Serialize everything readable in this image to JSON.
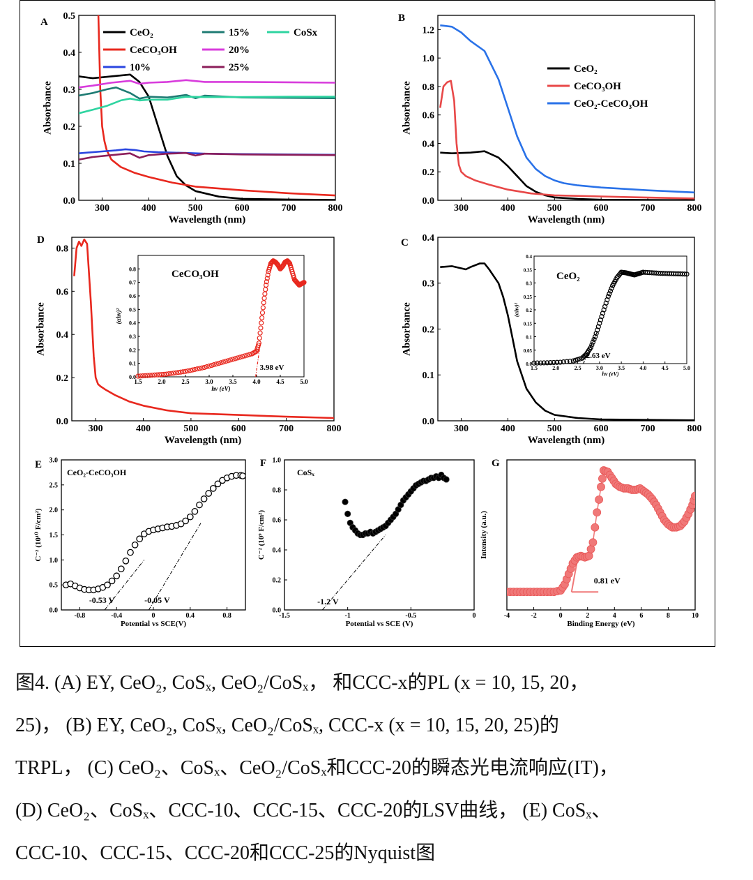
{
  "chart_data": [
    {
      "id": "A",
      "panel_label": "A",
      "type": "line",
      "xlabel": "Wavelength (nm)",
      "ylabel": "Absorbance",
      "xlim": [
        250,
        800
      ],
      "ylim": [
        0,
        0.5
      ],
      "xticks": [
        300,
        400,
        500,
        600,
        700,
        800
      ],
      "yticks": [
        0.0,
        0.1,
        0.2,
        0.3,
        0.4,
        0.5
      ],
      "yfmt": 1,
      "legend": "top",
      "series": [
        {
          "name": "CeO₂",
          "color": "#000000",
          "x": [
            250,
            280,
            320,
            360,
            380,
            400,
            420,
            440,
            460,
            480,
            500,
            550,
            600,
            700,
            800
          ],
          "y": [
            0.335,
            0.33,
            0.335,
            0.34,
            0.32,
            0.28,
            0.2,
            0.12,
            0.065,
            0.04,
            0.025,
            0.01,
            0.004,
            0.002,
            0.001
          ]
        },
        {
          "name": "CeCO₃OH",
          "color": "#e8281e",
          "x": [
            292,
            296,
            300,
            305,
            310,
            320,
            340,
            370,
            400,
            450,
            500,
            600,
            700,
            800
          ],
          "y": [
            0.5,
            0.3,
            0.2,
            0.16,
            0.135,
            0.11,
            0.09,
            0.074,
            0.063,
            0.048,
            0.037,
            0.027,
            0.019,
            0.013
          ]
        },
        {
          "name": "10%",
          "color": "#2a46e0",
          "x": [
            250,
            300,
            330,
            350,
            370,
            390,
            420,
            480,
            520,
            600,
            700,
            800
          ],
          "y": [
            0.127,
            0.132,
            0.135,
            0.138,
            0.136,
            0.132,
            0.13,
            0.128,
            0.126,
            0.125,
            0.124,
            0.123
          ]
        },
        {
          "name": "15%",
          "color": "#1e7b73",
          "x": [
            250,
            280,
            310,
            330,
            360,
            380,
            400,
            440,
            480,
            500,
            520,
            600,
            700,
            800
          ],
          "y": [
            0.283,
            0.29,
            0.3,
            0.305,
            0.29,
            0.275,
            0.28,
            0.278,
            0.285,
            0.276,
            0.283,
            0.278,
            0.277,
            0.276
          ]
        },
        {
          "name": "20%",
          "color": "#d83cdc",
          "x": [
            250,
            280,
            320,
            360,
            380,
            400,
            440,
            480,
            520,
            600,
            700,
            800
          ],
          "y": [
            0.305,
            0.31,
            0.318,
            0.323,
            0.315,
            0.318,
            0.32,
            0.325,
            0.32,
            0.32,
            0.319,
            0.318
          ]
        },
        {
          "name": "25%",
          "color": "#8c1e5a",
          "x": [
            250,
            280,
            320,
            360,
            380,
            400,
            440,
            480,
            500,
            520,
            600,
            700,
            800
          ],
          "y": [
            0.11,
            0.117,
            0.122,
            0.127,
            0.115,
            0.122,
            0.126,
            0.128,
            0.121,
            0.126,
            0.124,
            0.123,
            0.122
          ]
        },
        {
          "name": "CoSx",
          "color": "#2ed4a0",
          "x": [
            250,
            280,
            310,
            340,
            360,
            380,
            400,
            440,
            480,
            520,
            600,
            700,
            800
          ],
          "y": [
            0.235,
            0.245,
            0.255,
            0.27,
            0.275,
            0.27,
            0.272,
            0.272,
            0.28,
            0.279,
            0.279,
            0.28,
            0.28
          ]
        }
      ]
    },
    {
      "id": "B",
      "panel_label": "B",
      "type": "line",
      "xlabel": "Wavelength (nm)",
      "ylabel": "Absorbance",
      "xlim": [
        250,
        800
      ],
      "ylim": [
        0,
        1.3
      ],
      "xticks": [
        300,
        400,
        500,
        600,
        700,
        800
      ],
      "yticks": [
        0.0,
        0.2,
        0.4,
        0.6,
        0.8,
        1.0,
        1.2
      ],
      "yfmt": 1,
      "legend": "right",
      "series": [
        {
          "name": "CeO₂",
          "color": "#000000",
          "x": [
            255,
            280,
            320,
            350,
            380,
            400,
            420,
            440,
            460,
            480,
            500,
            550,
            600,
            700,
            800
          ],
          "y": [
            0.335,
            0.33,
            0.335,
            0.345,
            0.3,
            0.24,
            0.17,
            0.1,
            0.06,
            0.035,
            0.02,
            0.01,
            0.004,
            0.002,
            0.001
          ]
        },
        {
          "name": "CeCO₃OH",
          "color": "#e84848",
          "x": [
            255,
            262,
            270,
            278,
            285,
            290,
            295,
            300,
            310,
            330,
            360,
            400,
            450,
            500,
            600,
            700,
            800
          ],
          "y": [
            0.65,
            0.8,
            0.83,
            0.84,
            0.7,
            0.4,
            0.25,
            0.2,
            0.17,
            0.14,
            0.11,
            0.075,
            0.048,
            0.035,
            0.027,
            0.019,
            0.013
          ]
        },
        {
          "name": "CeO₂-CeCO₃OH",
          "color": "#2a72e8",
          "x": [
            255,
            280,
            300,
            320,
            350,
            380,
            400,
            420,
            440,
            460,
            480,
            500,
            520,
            550,
            600,
            650,
            700,
            800
          ],
          "y": [
            1.23,
            1.22,
            1.18,
            1.12,
            1.05,
            0.85,
            0.65,
            0.45,
            0.3,
            0.22,
            0.17,
            0.14,
            0.12,
            0.105,
            0.09,
            0.08,
            0.07,
            0.055
          ]
        }
      ]
    },
    {
      "id": "D",
      "panel_label": "D",
      "type": "line",
      "xlabel": "Wavelength (nm)",
      "ylabel": "Absorbance",
      "xlim": [
        250,
        800
      ],
      "ylim": [
        0,
        0.85
      ],
      "xticks": [
        300,
        400,
        500,
        600,
        700,
        800
      ],
      "yticks": [
        0.0,
        0.2,
        0.4,
        0.6,
        0.8
      ],
      "yfmt": 1,
      "series": [
        {
          "name": "",
          "color": "#e8281e",
          "x": [
            255,
            260,
            265,
            270,
            276,
            282,
            290,
            296,
            300,
            305,
            310,
            320,
            340,
            370,
            400,
            450,
            500,
            600,
            700,
            800
          ],
          "y": [
            0.67,
            0.8,
            0.83,
            0.81,
            0.84,
            0.82,
            0.55,
            0.3,
            0.2,
            0.17,
            0.16,
            0.145,
            0.12,
            0.09,
            0.07,
            0.048,
            0.035,
            0.027,
            0.019,
            0.013
          ]
        }
      ],
      "inset": {
        "title": "CeCO₃OH",
        "xlabel": "hν (eV)",
        "ylabel": "(αhν)²",
        "xlim": [
          1.5,
          5.0
        ],
        "ylim": [
          0,
          0.9
        ],
        "xticks": [
          1.5,
          2.0,
          2.5,
          3.0,
          3.5,
          4.0,
          4.5,
          5.0
        ],
        "yticks": [
          0.0,
          0.1,
          0.2,
          0.3,
          0.4,
          0.5,
          0.6,
          0.7,
          0.8
        ],
        "marker_color": "#e8281e",
        "x": [
          1.5,
          1.7,
          1.9,
          2.1,
          2.3,
          2.5,
          2.7,
          2.9,
          3.1,
          3.3,
          3.5,
          3.7,
          3.9,
          4.0,
          4.05,
          4.1,
          4.15,
          4.2,
          4.25,
          4.3,
          4.35,
          4.4,
          4.45,
          4.5,
          4.55,
          4.6,
          4.65,
          4.7,
          4.75,
          4.8,
          4.85,
          4.9,
          4.95,
          5.0
        ],
        "y": [
          0.005,
          0.01,
          0.015,
          0.02,
          0.03,
          0.04,
          0.055,
          0.07,
          0.09,
          0.11,
          0.13,
          0.15,
          0.17,
          0.19,
          0.25,
          0.4,
          0.55,
          0.68,
          0.78,
          0.84,
          0.86,
          0.85,
          0.83,
          0.8,
          0.82,
          0.85,
          0.86,
          0.84,
          0.78,
          0.72,
          0.7,
          0.68,
          0.69,
          0.7
        ],
        "annotation": "3.98 eV",
        "annotation_x": 3.98
      }
    },
    {
      "id": "C",
      "panel_label": "C",
      "type": "line",
      "xlabel": "Wavelength (nm)",
      "ylabel": "Absorbance",
      "xlim": [
        250,
        800
      ],
      "ylim": [
        0,
        0.4
      ],
      "xticks": [
        300,
        400,
        500,
        600,
        700,
        800
      ],
      "yticks": [
        0.0,
        0.1,
        0.2,
        0.3,
        0.4
      ],
      "yfmt": 1,
      "series": [
        {
          "name": "",
          "color": "#000000",
          "x": [
            255,
            280,
            310,
            320,
            340,
            350,
            360,
            380,
            390,
            400,
            410,
            420,
            440,
            460,
            480,
            500,
            550,
            600,
            700,
            800
          ],
          "y": [
            0.335,
            0.337,
            0.33,
            0.335,
            0.343,
            0.343,
            0.33,
            0.3,
            0.27,
            0.23,
            0.18,
            0.13,
            0.07,
            0.04,
            0.022,
            0.013,
            0.006,
            0.003,
            0.002,
            0.001
          ]
        }
      ],
      "inset": {
        "title": "CeO₂",
        "xlabel": "hν (eV)",
        "ylabel": "(αhν)²",
        "xlim": [
          1.5,
          5.0
        ],
        "ylim": [
          0,
          0.4
        ],
        "xticks": [
          1.5,
          2.0,
          2.5,
          3.0,
          3.5,
          4.0,
          4.5,
          5.0
        ],
        "yticks": [
          0.0,
          0.05,
          0.1,
          0.15,
          0.2,
          0.25,
          0.3,
          0.35,
          0.4
        ],
        "marker_color": "#000000",
        "x": [
          1.5,
          1.8,
          2.1,
          2.4,
          2.6,
          2.7,
          2.8,
          2.9,
          3.0,
          3.1,
          3.2,
          3.3,
          3.4,
          3.5,
          3.6,
          3.7,
          3.8,
          3.9,
          4.0,
          4.2,
          4.4,
          4.6,
          4.8,
          5.0
        ],
        "y": [
          0.002,
          0.003,
          0.005,
          0.01,
          0.02,
          0.035,
          0.06,
          0.1,
          0.15,
          0.2,
          0.25,
          0.29,
          0.32,
          0.34,
          0.338,
          0.334,
          0.33,
          0.335,
          0.34,
          0.338,
          0.336,
          0.335,
          0.334,
          0.333
        ],
        "annotation": "2.63 eV",
        "annotation_x": 2.63
      }
    },
    {
      "id": "E",
      "panel_label": "E",
      "type": "scatter",
      "title": "CeO₂-CeCO₃OH",
      "xlabel": "Potential vs SCE(V)",
      "ylabel": "C⁻² (10¹⁰ F/cm²)",
      "xlim": [
        -1.0,
        1.0
      ],
      "ylim": [
        0,
        3.0
      ],
      "xticks": [
        -0.8,
        -0.4,
        0.0,
        0.4,
        0.8
      ],
      "yticks": [
        0.0,
        0.5,
        1.0,
        1.5,
        2.0,
        2.5,
        3.0
      ],
      "yfmt": 1,
      "marker_color": "#000000",
      "x": [
        -0.95,
        -0.9,
        -0.85,
        -0.8,
        -0.75,
        -0.7,
        -0.65,
        -0.6,
        -0.55,
        -0.5,
        -0.45,
        -0.4,
        -0.35,
        -0.3,
        -0.25,
        -0.2,
        -0.15,
        -0.1,
        -0.05,
        0.0,
        0.05,
        0.1,
        0.15,
        0.2,
        0.25,
        0.3,
        0.35,
        0.4,
        0.45,
        0.5,
        0.55,
        0.6,
        0.65,
        0.7,
        0.75,
        0.8,
        0.85,
        0.9,
        0.95,
        0.97
      ],
      "y": [
        0.5,
        0.52,
        0.48,
        0.44,
        0.41,
        0.4,
        0.4,
        0.42,
        0.45,
        0.5,
        0.58,
        0.68,
        0.82,
        0.98,
        1.15,
        1.3,
        1.42,
        1.52,
        1.57,
        1.6,
        1.62,
        1.64,
        1.66,
        1.67,
        1.69,
        1.72,
        1.78,
        1.86,
        1.97,
        2.1,
        2.22,
        2.33,
        2.43,
        2.52,
        2.59,
        2.64,
        2.67,
        2.69,
        2.69,
        2.68
      ],
      "fit_lines": [
        [
          [
            -0.53,
            0.0
          ],
          [
            -0.1,
            1.0
          ]
        ],
        [
          [
            -0.05,
            0.0
          ],
          [
            0.52,
            1.75
          ]
        ]
      ],
      "annotations": [
        {
          "text": "-0.53 V",
          "x": -0.53,
          "color": "#e02020"
        },
        {
          "text": "-0.05 V",
          "x": -0.05,
          "color": "#2035c8"
        }
      ]
    },
    {
      "id": "F",
      "panel_label": "F",
      "type": "scatter",
      "title": "CoSₓ",
      "xlabel": "Potential vs SCE (V)",
      "ylabel": "C⁻² (10⁹ F/cm²)",
      "xlim": [
        -1.5,
        0.0
      ],
      "ylim": [
        0,
        1.0
      ],
      "xticks": [
        -1.5,
        -1.0,
        -0.5,
        0.0
      ],
      "yticks": [
        0.0,
        0.2,
        0.4,
        0.6,
        0.8,
        1.0
      ],
      "yfmt": 1,
      "marker_color": "#000000",
      "x": [
        -1.02,
        -1.0,
        -0.98,
        -0.96,
        -0.94,
        -0.92,
        -0.9,
        -0.88,
        -0.86,
        -0.84,
        -0.82,
        -0.8,
        -0.78,
        -0.76,
        -0.74,
        -0.72,
        -0.7,
        -0.68,
        -0.66,
        -0.64,
        -0.62,
        -0.6,
        -0.58,
        -0.56,
        -0.54,
        -0.52,
        -0.5,
        -0.48,
        -0.46,
        -0.44,
        -0.42,
        -0.4,
        -0.38,
        -0.36,
        -0.34,
        -0.32,
        -0.3,
        -0.28,
        -0.26,
        -0.24,
        -0.22
      ],
      "y": [
        0.72,
        0.64,
        0.58,
        0.55,
        0.53,
        0.51,
        0.5,
        0.5,
        0.51,
        0.51,
        0.52,
        0.51,
        0.52,
        0.53,
        0.54,
        0.55,
        0.56,
        0.58,
        0.6,
        0.62,
        0.64,
        0.67,
        0.7,
        0.73,
        0.75,
        0.77,
        0.79,
        0.81,
        0.83,
        0.84,
        0.85,
        0.86,
        0.86,
        0.87,
        0.88,
        0.88,
        0.89,
        0.88,
        0.9,
        0.88,
        0.87
      ],
      "fit_lines": [
        [
          [
            -1.2,
            0.0
          ],
          [
            -0.7,
            0.5
          ]
        ]
      ],
      "annotations": [
        {
          "text": "-1.2 V",
          "x": -1.2,
          "color": "#e02020"
        }
      ]
    },
    {
      "id": "G",
      "panel_label": "G",
      "type": "scatter",
      "xlabel": "Binding Energy (eV)",
      "ylabel": "Intensity (a.u.)",
      "xlim": [
        -4,
        10
      ],
      "ylim": [
        0,
        1.0
      ],
      "xticks": [
        -4,
        -2,
        0,
        2,
        4,
        6,
        8,
        10
      ],
      "yticks": [],
      "marker_color": "#f07878",
      "x": [
        -4,
        -3.5,
        -3,
        -2.5,
        -2,
        -1.5,
        -1,
        -0.5,
        0,
        0.3,
        0.6,
        0.9,
        1.2,
        1.5,
        1.8,
        2.1,
        2.4,
        2.7,
        3.0,
        3.2,
        3.5,
        3.8,
        4.1,
        4.4,
        4.7,
        5.0,
        5.3,
        5.6,
        5.9,
        6.2,
        6.5,
        6.8,
        7.1,
        7.4,
        7.7,
        8.0,
        8.3,
        8.6,
        8.9,
        9.2,
        9.5,
        9.8,
        10
      ],
      "y": [
        0.12,
        0.12,
        0.12,
        0.12,
        0.12,
        0.12,
        0.12,
        0.12,
        0.13,
        0.17,
        0.24,
        0.31,
        0.35,
        0.36,
        0.35,
        0.36,
        0.45,
        0.65,
        0.82,
        0.93,
        0.92,
        0.88,
        0.84,
        0.82,
        0.81,
        0.81,
        0.8,
        0.8,
        0.81,
        0.79,
        0.77,
        0.74,
        0.7,
        0.65,
        0.6,
        0.57,
        0.55,
        0.55,
        0.56,
        0.59,
        0.64,
        0.7,
        0.76
      ],
      "fit_lines": [
        [
          [
            0.81,
            0.12
          ],
          [
            1.3,
            0.36
          ]
        ],
        [
          [
            0.81,
            0.12
          ],
          [
            2.8,
            0.12
          ]
        ]
      ],
      "annotations": [
        {
          "text": "0.81 eV",
          "x": 0.81,
          "color": "#000000"
        }
      ]
    }
  ],
  "caption": {
    "lines": [
      "图4. (A) EY, CeO₂, CoSₓ, CeO₂/CoSₓ， 和CCC-x的PL (x = 10, 15, 20，",
      "25)，  (B) EY, CeO₂, CoSₓ, CeO₂/CoSₓ, CCC-x (x = 10, 15, 20, 25)的",
      "TRPL，  (C) CeO₂、CoSₓ、CeO₂/CoSₓ和CCC-20的瞬态光电流响应(IT)，",
      "(D) CeO₂、CoSₓ、CCC-10、CCC-15、CCC-20的LSV曲线，  (E) CoSₓ、",
      "CCC-10、CCC-15、CCC-20和CCC-25的Nyquist图"
    ]
  }
}
